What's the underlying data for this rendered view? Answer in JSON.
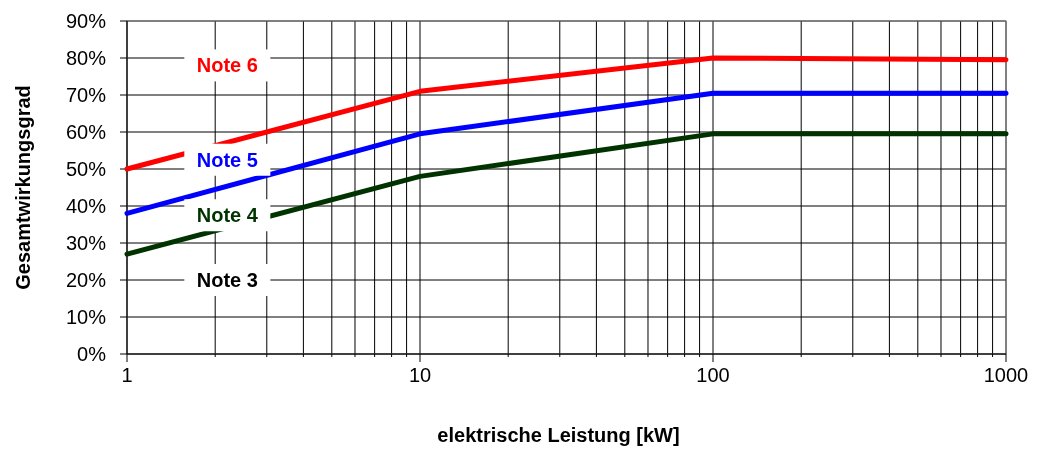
{
  "chart_data": {
    "type": "line",
    "xlabel": "elektrische Leistung [kW]",
    "ylabel": "Gesamtwirkungsgrad",
    "x": [
      1,
      10,
      100,
      1000
    ],
    "log": "x",
    "xlim": [
      1,
      1000
    ],
    "ylim": [
      0,
      90
    ],
    "xticks": [
      1,
      {
        "value": 2,
        "label": null
      },
      {
        "value": 3,
        "label": null
      },
      {
        "value": 4,
        "label": null
      },
      {
        "value": 5,
        "label": null
      },
      {
        "value": 6,
        "label": null
      },
      {
        "value": 7,
        "label": null
      },
      {
        "value": 8,
        "label": null
      },
      {
        "value": 9,
        "label": null
      },
      10,
      {
        "value": 20,
        "label": null
      },
      {
        "value": 30,
        "label": null
      },
      {
        "value": 40,
        "label": null
      },
      {
        "value": 50,
        "label": null
      },
      {
        "value": 60,
        "label": null
      },
      {
        "value": 70,
        "label": null
      },
      {
        "value": 80,
        "label": null
      },
      {
        "value": 90,
        "label": null
      },
      100,
      {
        "value": 200,
        "label": null
      },
      {
        "value": 300,
        "label": null
      },
      {
        "value": 400,
        "label": null
      },
      {
        "value": 500,
        "label": null
      },
      {
        "value": 600,
        "label": null
      },
      {
        "value": 700,
        "label": null
      },
      {
        "value": 800,
        "label": null
      },
      {
        "value": 900,
        "label": null
      },
      1000
    ],
    "yticks": [
      {
        "value": 0,
        "label": "0%"
      },
      {
        "value": 10,
        "label": "10%"
      },
      {
        "value": 20,
        "label": "20%"
      },
      {
        "value": 30,
        "label": "30%"
      },
      {
        "value": 40,
        "label": "40%"
      },
      {
        "value": 50,
        "label": "50%"
      },
      {
        "value": 60,
        "label": "60%"
      },
      {
        "value": 70,
        "label": "70%"
      },
      {
        "value": 80,
        "label": "80%"
      },
      {
        "value": 90,
        "label": "90%"
      }
    ],
    "grid": true,
    "marker": "none",
    "line_style": "solid",
    "series": [
      {
        "name": "Note 6",
        "color": "#ff0000",
        "values": [
          50,
          71,
          80,
          79.5
        ]
      },
      {
        "name": "Note 5",
        "color": "#0000ff",
        "values": [
          38,
          59.5,
          70.5,
          70.5
        ]
      },
      {
        "name": "Note 4",
        "color": "#003300",
        "values": [
          27,
          48,
          59.5,
          59.5
        ]
      }
    ],
    "annotations": [
      "Note 3"
    ]
  }
}
